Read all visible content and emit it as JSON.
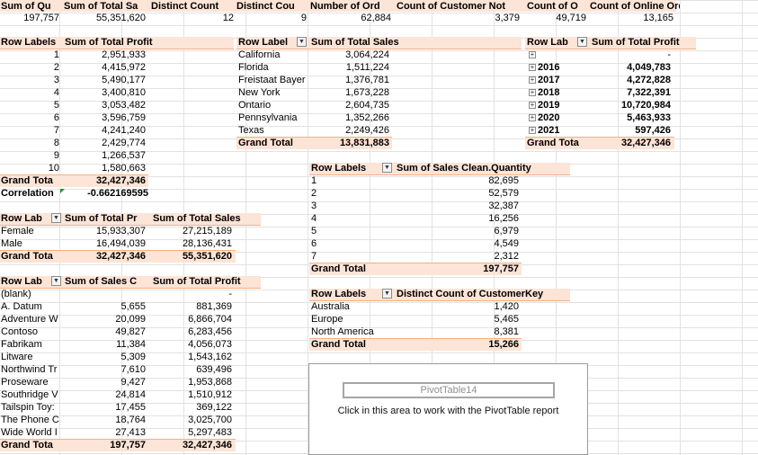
{
  "summary": {
    "headers": [
      "Sum of Qu",
      "Sum of Total Sa",
      "Distinct Count",
      "Distinct Cou",
      "Number of Ord",
      "Count of Customer Not",
      "Count of O",
      "Count of Online Order"
    ],
    "values": [
      "197,757",
      "55,351,620",
      "12",
      "9",
      "62,884",
      "3,379",
      "49,719",
      "13,165"
    ]
  },
  "pt_profit_by_num": {
    "row_label": "Row Labels",
    "value_label": "Sum of Total Profit",
    "rows": [
      {
        "label": "1",
        "value": "2,951,933"
      },
      {
        "label": "2",
        "value": "4,415,972"
      },
      {
        "label": "3",
        "value": "5,490,177"
      },
      {
        "label": "4",
        "value": "3,400,810"
      },
      {
        "label": "5",
        "value": "3,053,482"
      },
      {
        "label": "6",
        "value": "3,596,759"
      },
      {
        "label": "7",
        "value": "4,241,240"
      },
      {
        "label": "8",
        "value": "2,429,774"
      },
      {
        "label": "9",
        "value": "1,266,537"
      },
      {
        "label": "10",
        "value": "1,580,663"
      }
    ],
    "total_label": "Grand Tota",
    "total_value": "32,427,346",
    "correlation_label": "Correlation",
    "correlation_value": "-0.662169595"
  },
  "pt_sales_by_state": {
    "row_label": "Row Label",
    "value_label": "Sum of Total Sales",
    "rows": [
      {
        "label": "California",
        "value": "3,064,224"
      },
      {
        "label": "Florida",
        "value": "1,511,224"
      },
      {
        "label": "Freistaat Bayer",
        "value": "1,376,781"
      },
      {
        "label": "New York",
        "value": "1,673,228"
      },
      {
        "label": "Ontario",
        "value": "2,604,735"
      },
      {
        "label": "Pennsylvania",
        "value": "1,352,266"
      },
      {
        "label": "Texas",
        "value": "2,249,426"
      }
    ],
    "total_label": "Grand Total",
    "total_value": "13,831,883"
  },
  "pt_profit_by_year": {
    "row_label": "Row Lab",
    "value_label": "Sum of Total Profit",
    "rows": [
      {
        "label": "",
        "value": "-"
      },
      {
        "label": "2016",
        "value": "4,049,783"
      },
      {
        "label": "2017",
        "value": "4,272,828"
      },
      {
        "label": "2018",
        "value": "7,322,391"
      },
      {
        "label": "2019",
        "value": "10,720,984"
      },
      {
        "label": "2020",
        "value": "5,463,933"
      },
      {
        "label": "2021",
        "value": "597,426"
      }
    ],
    "total_label": "Grand Tota",
    "total_value": "32,427,346"
  },
  "pt_quantity": {
    "row_label": "Row Labels",
    "value_label": "Sum of Sales Clean.Quantity",
    "rows": [
      {
        "label": "1",
        "value": "82,695"
      },
      {
        "label": "2",
        "value": "52,579"
      },
      {
        "label": "3",
        "value": "32,387"
      },
      {
        "label": "4",
        "value": "16,256"
      },
      {
        "label": "5",
        "value": "6,979"
      },
      {
        "label": "6",
        "value": "4,549"
      },
      {
        "label": "7",
        "value": "2,312"
      }
    ],
    "total_label": "Grand Total",
    "total_value": "197,757"
  },
  "pt_gender": {
    "row_label": "Row Lab",
    "value_label_1": "Sum of Total Pr",
    "value_label_2": "Sum of Total Sales",
    "rows": [
      {
        "label": "Female",
        "v1": "15,933,307",
        "v2": "27,215,189"
      },
      {
        "label": "Male",
        "v1": "16,494,039",
        "v2": "28,136,431"
      }
    ],
    "total_label": "Grand Tota",
    "total_v1": "32,427,346",
    "total_v2": "55,351,620"
  },
  "pt_brand": {
    "row_label": "Row Lab",
    "value_label_1": "Sum of Sales C",
    "value_label_2": "Sum of Total Profit",
    "rows": [
      {
        "label": "(blank)",
        "v1": "",
        "v2": "-"
      },
      {
        "label": "A. Datum",
        "v1": "5,655",
        "v2": "881,369"
      },
      {
        "label": "Adventure W",
        "v1": "20,099",
        "v2": "6,866,704"
      },
      {
        "label": "Contoso",
        "v1": "49,827",
        "v2": "6,283,456"
      },
      {
        "label": "Fabrikam",
        "v1": "11,384",
        "v2": "4,056,073"
      },
      {
        "label": "Litware",
        "v1": "5,309",
        "v2": "1,543,162"
      },
      {
        "label": "Northwind Tr",
        "v1": "7,610",
        "v2": "639,496"
      },
      {
        "label": "Proseware",
        "v1": "9,427",
        "v2": "1,953,868"
      },
      {
        "label": "Southridge V",
        "v1": "24,814",
        "v2": "1,510,912"
      },
      {
        "label": "Tailspin Toy:",
        "v1": "17,455",
        "v2": "369,122"
      },
      {
        "label": "The Phone C",
        "v1": "18,764",
        "v2": "3,025,700"
      },
      {
        "label": "Wide World I",
        "v1": "27,413",
        "v2": "5,297,483"
      }
    ],
    "total_label": "Grand Tota",
    "total_v1": "197,757",
    "total_v2": "32,427,346"
  },
  "pt_continent": {
    "row_label": "Row Labels",
    "value_label": "Distinct Count of CustomerKey",
    "rows": [
      {
        "label": "Australia",
        "value": "1,420"
      },
      {
        "label": "Europe",
        "value": "5,465"
      },
      {
        "label": "North America",
        "value": "8,381"
      }
    ],
    "total_label": "Grand Total",
    "total_value": "15,266"
  },
  "pivot_placeholder": {
    "name": "PivotTable14",
    "message": "Click in this area to work with the PivotTable report"
  },
  "colors": {
    "header_band": "#fce4d6",
    "header_line": "#f4b183",
    "gridline": "#e2e2e2"
  }
}
